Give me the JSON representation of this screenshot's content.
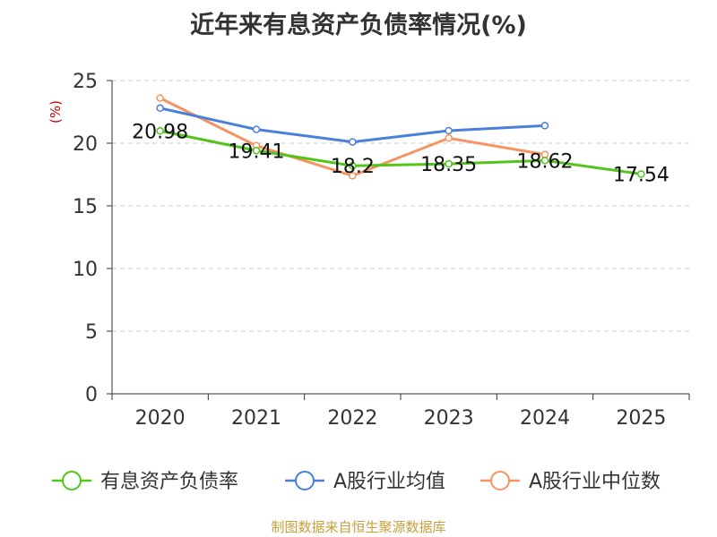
{
  "chart_data": {
    "type": "line",
    "title": "近年来有息资产负债率情况(%)",
    "ylabel": "(%)",
    "categories": [
      "2020",
      "2021",
      "2022",
      "2023",
      "2024",
      "2025"
    ],
    "ylim": [
      0,
      25
    ],
    "yticks": [
      0,
      5,
      10,
      15,
      20,
      25
    ],
    "grid": true,
    "legend_position": "bottom",
    "series": [
      {
        "name": "有息资产负债率",
        "color": "#52c41a",
        "values": [
          20.98,
          19.41,
          18.2,
          18.35,
          18.62,
          17.54
        ],
        "labels": [
          "20.98",
          "19.41",
          "18.2",
          "18.35",
          "18.62",
          "17.54"
        ]
      },
      {
        "name": "A股行业均值",
        "color": "#4a7fdc",
        "values": [
          22.8,
          21.1,
          20.1,
          21.0,
          21.4,
          null
        ]
      },
      {
        "name": "A股行业中位数",
        "color": "#f59461",
        "values": [
          23.6,
          19.8,
          17.4,
          20.4,
          19.1,
          null
        ]
      }
    ]
  },
  "source": "制图数据来自恒生聚源数据库"
}
